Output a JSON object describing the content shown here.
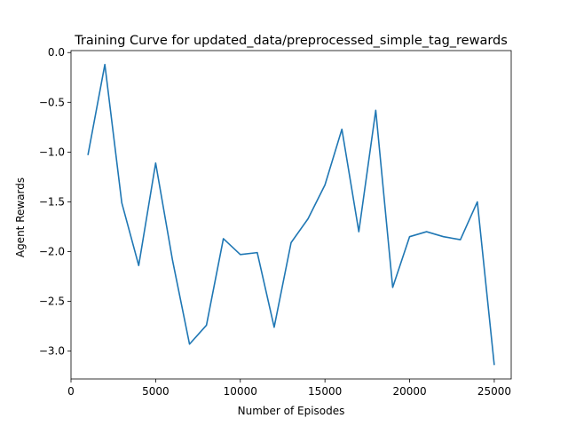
{
  "chart_data": {
    "type": "line",
    "title": "Training Curve for updated_data/preprocessed_simple_tag_rewards",
    "xlabel": "Number of Episodes",
    "ylabel": "Agent Rewards",
    "xlim": [
      0,
      26000
    ],
    "ylim": [
      -3.28,
      0.02
    ],
    "xticks": [
      0,
      5000,
      10000,
      15000,
      20000,
      25000
    ],
    "yticks": [
      0.0,
      -0.5,
      -1.0,
      -1.5,
      -2.0,
      -2.5,
      -3.0
    ],
    "xtick_labels": [
      "0",
      "5000",
      "10000",
      "15000",
      "20000",
      "25000"
    ],
    "ytick_labels": [
      "0.0",
      "−0.5",
      "−1.0",
      "−1.5",
      "−2.0",
      "−2.5",
      "−3.0"
    ],
    "grid": false,
    "line_color": "#1f77b4",
    "series": [
      {
        "x": [
          1000,
          2000,
          3000,
          4000,
          5000,
          6000,
          7000,
          8000,
          9000,
          10000,
          11000,
          12000,
          13000,
          14000,
          15000,
          16000,
          17000,
          18000,
          19000,
          20000,
          21000,
          22000,
          23000,
          24000,
          25000
        ],
        "values": [
          -1.03,
          -0.12,
          -1.51,
          -2.14,
          -1.11,
          -2.09,
          -2.93,
          -2.74,
          -1.87,
          -2.03,
          -2.01,
          -2.76,
          -1.91,
          -1.67,
          -1.33,
          -0.77,
          -1.8,
          -0.58,
          -2.36,
          -1.85,
          -1.8,
          -1.85,
          -1.88,
          -1.5,
          -3.14
        ]
      }
    ]
  }
}
